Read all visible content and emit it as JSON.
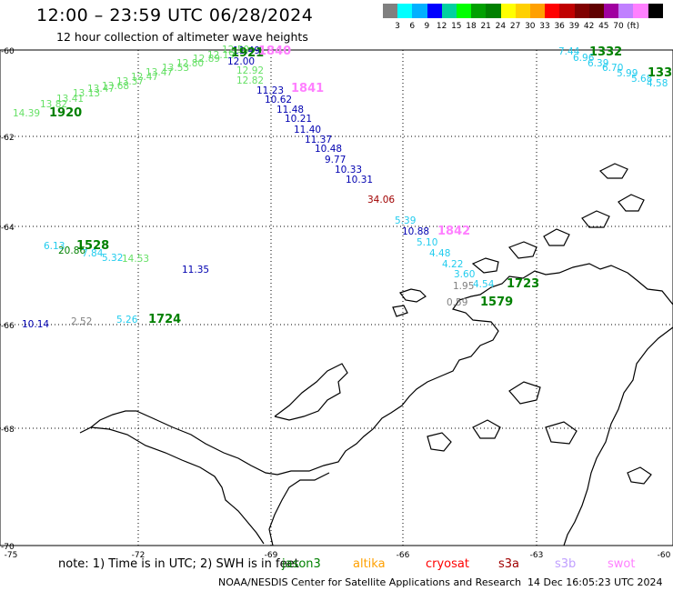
{
  "header": {
    "title": "12:00 – 23:59 UTC 06/28/2024",
    "subtitle": "12 hour collection of altimeter wave heights"
  },
  "color_scale": {
    "colors": [
      "#808080",
      "#00ffff",
      "#00b0ff",
      "#0000ff",
      "#00d0a0",
      "#00ff00",
      "#00a000",
      "#008000",
      "#ffff00",
      "#ffd000",
      "#ffa000",
      "#ff0000",
      "#c00000",
      "#800000",
      "#600000",
      "#a000a0",
      "#c080ff",
      "#ff80ff",
      "#000000"
    ],
    "labels": [
      "3",
      "6",
      "9",
      "12",
      "15",
      "18",
      "21",
      "24",
      "27",
      "30",
      "33",
      "36",
      "39",
      "42",
      "45",
      "70",
      "(ft)"
    ]
  },
  "map": {
    "lat_labels": [
      "-60",
      "-62",
      "-64",
      "-66",
      "-68",
      "-70"
    ],
    "lon_labels": [
      "-75",
      "-72",
      "-69",
      "-66",
      "-63",
      "-60"
    ]
  },
  "labels": [
    {
      "t": "14.39",
      "c": "#66e066"
    },
    {
      "t": "1920",
      "c": "#008000",
      "b": true
    },
    {
      "t": "13.82",
      "c": "#66e066"
    },
    {
      "t": "13.41",
      "c": "#66e066"
    },
    {
      "t": "13.13",
      "c": "#66e066"
    },
    {
      "t": "13.47",
      "c": "#66e066"
    },
    {
      "t": "13.68",
      "c": "#66e066"
    },
    {
      "t": "13.37",
      "c": "#66e066"
    },
    {
      "t": "12.47",
      "c": "#66e066"
    },
    {
      "t": "13.47",
      "c": "#66e066"
    },
    {
      "t": "13.53",
      "c": "#66e066"
    },
    {
      "t": "12.80",
      "c": "#66e066"
    },
    {
      "t": "12.89",
      "c": "#66e066"
    },
    {
      "t": "12.19",
      "c": "#66e066"
    },
    {
      "t": "12.50",
      "c": "#66e066"
    },
    {
      "t": "11.49",
      "c": "#0000b0"
    },
    {
      "t": "1921",
      "c": "#008000",
      "b": true
    },
    {
      "t": "1840",
      "c": "#ff80ff",
      "b": true
    },
    {
      "t": "12.00",
      "c": "#0000b0"
    },
    {
      "t": "12.92",
      "c": "#66e066"
    },
    {
      "t": "12.82",
      "c": "#66e066"
    },
    {
      "t": "11.23",
      "c": "#0000b0"
    },
    {
      "t": "1841",
      "c": "#ff80ff",
      "b": true
    },
    {
      "t": "10.62",
      "c": "#0000b0"
    },
    {
      "t": "11.48",
      "c": "#0000b0"
    },
    {
      "t": "10.21",
      "c": "#0000b0"
    },
    {
      "t": "11.40",
      "c": "#0000b0"
    },
    {
      "t": "11.37",
      "c": "#0000b0"
    },
    {
      "t": "10.48",
      "c": "#0000b0"
    },
    {
      "t": "9.77",
      "c": "#0000b0"
    },
    {
      "t": "10.33",
      "c": "#0000b0"
    },
    {
      "t": "10.31",
      "c": "#0000b0"
    },
    {
      "t": "34.06",
      "c": "#a00000"
    },
    {
      "t": "5.39",
      "c": "#22ccee"
    },
    {
      "t": "10.88",
      "c": "#0000b0"
    },
    {
      "t": "1842",
      "c": "#ff80ff",
      "b": true
    },
    {
      "t": "5.10",
      "c": "#22ccee"
    },
    {
      "t": "4.48",
      "c": "#22ccee"
    },
    {
      "t": "4.22",
      "c": "#22ccee"
    },
    {
      "t": "3.60",
      "c": "#22ccee"
    },
    {
      "t": "1.95",
      "c": "#808080"
    },
    {
      "t": "4.54",
      "c": "#22ccee"
    },
    {
      "t": "1723",
      "c": "#008000",
      "b": true
    },
    {
      "t": "0.59",
      "c": "#808080"
    },
    {
      "t": "1579",
      "c": "#008000",
      "b": true
    },
    {
      "t": "6.13",
      "c": "#22ccee"
    },
    {
      "t": "1528",
      "c": "#008000",
      "b": true
    },
    {
      "t": "20.86",
      "c": "#008000"
    },
    {
      "t": "7.84",
      "c": "#22ccee"
    },
    {
      "t": "5.32",
      "c": "#22ccee"
    },
    {
      "t": "14.53",
      "c": "#66e066"
    },
    {
      "t": "11.35",
      "c": "#0000b0"
    },
    {
      "t": "10.14",
      "c": "#0000b0"
    },
    {
      "t": "2.52",
      "c": "#808080"
    },
    {
      "t": "5.26",
      "c": "#22ccee"
    },
    {
      "t": "1724",
      "c": "#008000",
      "b": true
    },
    {
      "t": "7.44",
      "c": "#22ccee"
    },
    {
      "t": "1332",
      "c": "#008000",
      "b": true
    },
    {
      "t": "6.96",
      "c": "#22ccee"
    },
    {
      "t": "6.39",
      "c": "#22ccee"
    },
    {
      "t": "6.70",
      "c": "#22ccee"
    },
    {
      "t": "5.99",
      "c": "#22ccee"
    },
    {
      "t": "5.68",
      "c": "#22ccee"
    },
    {
      "t": "4.58",
      "c": "#22ccee"
    },
    {
      "t": "133",
      "c": "#008000",
      "b": true
    }
  ],
  "footer": {
    "note": "note:  1) Time is in UTC;  2) SWH is in feet",
    "satellites": [
      {
        "name": "jason3",
        "color": "#008000"
      },
      {
        "name": "altika",
        "color": "#ffa000"
      },
      {
        "name": "cryosat",
        "color": "#ff0000"
      },
      {
        "name": "s3a",
        "color": "#a00000"
      },
      {
        "name": "s3b",
        "color": "#c0a0ff"
      },
      {
        "name": "swot",
        "color": "#ff80ff"
      }
    ],
    "credit": "NOAA/NESDIS Center for Satellite Applications and Research",
    "timestamp": "14 Dec 16:05:23 UTC 2024"
  }
}
